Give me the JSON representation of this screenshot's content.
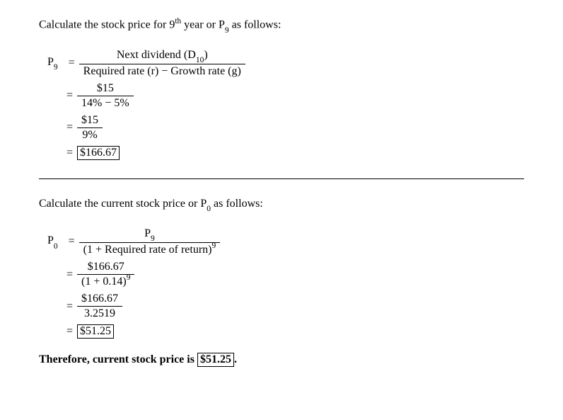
{
  "section1": {
    "intro_pre": "Calculate the stock price for 9",
    "intro_sup": "th",
    "intro_mid": " year or P",
    "intro_sub": "9",
    "intro_post": " as follows:",
    "lhs_var": "P",
    "lhs_sub": "9",
    "eq": "=",
    "r1_num_pre": "Next dividend (D",
    "r1_num_sub": "10",
    "r1_num_post": ")",
    "r1_den": "Required rate (r) − Growth rate (g)",
    "r2_num": "$15",
    "r2_den": "14% − 5%",
    "r3_num": "$15",
    "r3_den": "9%",
    "r4_val": "$166.67"
  },
  "section2": {
    "intro_pre": "Calculate the current stock price or P",
    "intro_sub": "0",
    "intro_post": " as follows:",
    "lhs_var": "P",
    "lhs_sub": "0",
    "eq": "=",
    "r1_num_var": "P",
    "r1_num_sub": "9",
    "r1_den_base": "(1 + Required rate of return)",
    "r1_den_exp": "9",
    "r2_num": "$166.67",
    "r2_den_base": "(1 + 0.14)",
    "r2_den_exp": "9",
    "r3_num": "$166.67",
    "r3_den": "3.2519",
    "r4_val": "$51.25"
  },
  "final": {
    "pre": "Therefore, current stock price is ",
    "val": "$51.25",
    "post": "."
  }
}
